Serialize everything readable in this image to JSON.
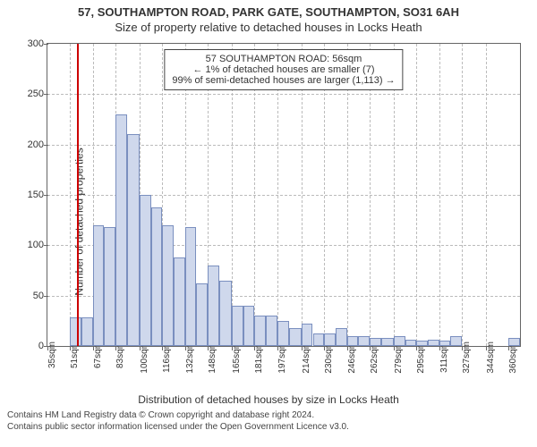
{
  "chart": {
    "type": "histogram",
    "title_line1": "57, SOUTHAMPTON ROAD, PARK GATE, SOUTHAMPTON, SO31 6AH",
    "title_line2": "Size of property relative to detached houses in Locks Heath",
    "ylabel": "Number of detached properties",
    "xlabel": "Distribution of detached houses by size in Locks Heath",
    "background_color": "#ffffff",
    "grid_color": "#bbbbbb",
    "axis_color": "#666666",
    "bar_fill": "#cfd8ec",
    "bar_stroke": "#7a8fbf",
    "marker_color": "#cc0000",
    "marker_value_sqm": 56,
    "font_family": "Arial",
    "title_fontsize": 13,
    "label_fontsize": 12,
    "tick_fontsize": 11,
    "xlim": [
      35,
      368
    ],
    "ylim": [
      0,
      300
    ],
    "ytick_step": 50,
    "xticks": [
      35,
      51,
      67,
      83,
      100,
      116,
      132,
      148,
      165,
      181,
      197,
      214,
      230,
      246,
      262,
      279,
      295,
      311,
      327,
      344,
      360
    ],
    "xtick_labels": [
      "35sqm",
      "51sqm",
      "67sqm",
      "83sqm",
      "100sqm",
      "116sqm",
      "132sqm",
      "148sqm",
      "165sqm",
      "181sqm",
      "197sqm",
      "214sqm",
      "230sqm",
      "246sqm",
      "262sqm",
      "279sqm",
      "295sqm",
      "311sqm",
      "327sqm",
      "344sqm",
      "360sqm"
    ],
    "bin_edges": [
      35,
      43,
      51,
      59,
      67,
      75,
      83,
      91,
      100,
      108,
      116,
      124,
      132,
      140,
      148,
      156,
      165,
      173,
      181,
      189,
      197,
      205,
      214,
      222,
      230,
      238,
      246,
      254,
      262,
      270,
      279,
      287,
      295,
      303,
      311,
      319,
      327,
      335,
      344,
      352,
      360,
      368
    ],
    "counts": [
      0,
      0,
      28,
      28,
      120,
      118,
      230,
      210,
      150,
      138,
      120,
      88,
      118,
      62,
      80,
      65,
      40,
      40,
      30,
      30,
      25,
      18,
      22,
      12,
      12,
      18,
      10,
      10,
      8,
      8,
      10,
      6,
      5,
      6,
      5,
      10,
      0,
      0,
      0,
      0,
      8
    ],
    "info_box": {
      "line1": "57 SOUTHAMPTON ROAD: 56sqm",
      "line2": "← 1% of detached houses are smaller (7)",
      "line3": "99% of semi-detached houses are larger (1,113) →"
    }
  },
  "footer": {
    "line1": "Contains HM Land Registry data © Crown copyright and database right 2024.",
    "line2": "Contains public sector information licensed under the Open Government Licence v3.0."
  }
}
